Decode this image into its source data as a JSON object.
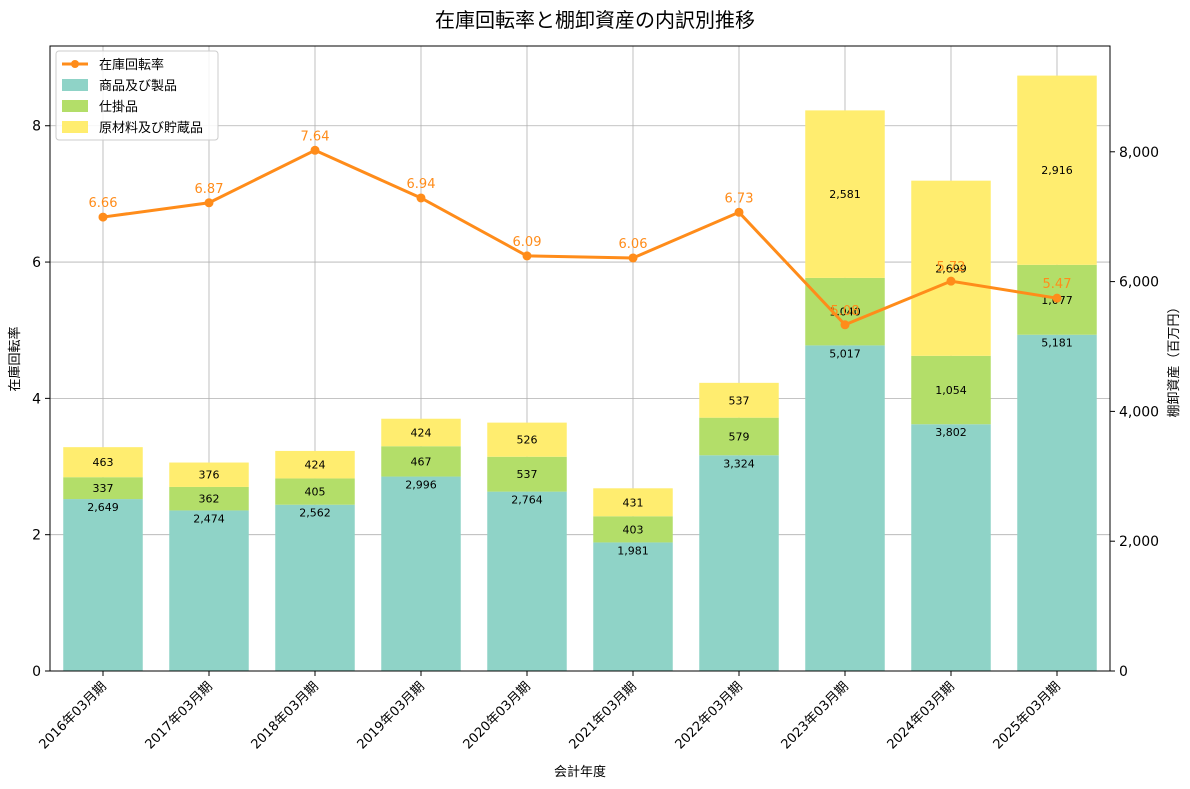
{
  "chart_data": {
    "type": "bar",
    "title": "在庫回転率と棚卸資産の内訳別推移",
    "xlabel": "会計年度",
    "ylabel_left": "在庫回転率",
    "ylabel_right": "棚卸資産（百万円）",
    "categories": [
      "2016年03月期",
      "2017年03月期",
      "2018年03月期",
      "2019年03月期",
      "2020年03月期",
      "2021年03月期",
      "2022年03月期",
      "2023年03月期",
      "2024年03月期",
      "2025年03月期"
    ],
    "stacked_series": [
      {
        "name": "商品及び製品",
        "color": "#8fd3c7",
        "values": [
          2649,
          2474,
          2562,
          2996,
          2764,
          1981,
          3324,
          5017,
          3802,
          5181
        ]
      },
      {
        "name": "仕掛品",
        "color": "#b3de69",
        "values": [
          337,
          362,
          405,
          467,
          537,
          403,
          579,
          1040,
          1054,
          1077
        ]
      },
      {
        "name": "原材料及び貯蔵品",
        "color": "#ffed6f",
        "values": [
          463,
          376,
          424,
          424,
          526,
          431,
          537,
          2581,
          2699,
          2916
        ]
      }
    ],
    "line_series": {
      "name": "在庫回転率",
      "color": "#ff8c1a",
      "values": [
        6.66,
        6.87,
        7.64,
        6.94,
        6.09,
        6.06,
        6.73,
        5.08,
        5.72,
        5.47
      ]
    },
    "ylim_left": [
      0,
      9.17
    ],
    "yticks_left": [
      0,
      2,
      4,
      6,
      8
    ],
    "ylim_right": [
      0,
      9630
    ],
    "yticks_right": [
      0,
      2000,
      4000,
      6000,
      8000
    ],
    "ytick_labels_right": [
      "0",
      "2,000",
      "4,000",
      "6,000",
      "8,000"
    ],
    "grid": true,
    "legend_position": "top-left"
  }
}
